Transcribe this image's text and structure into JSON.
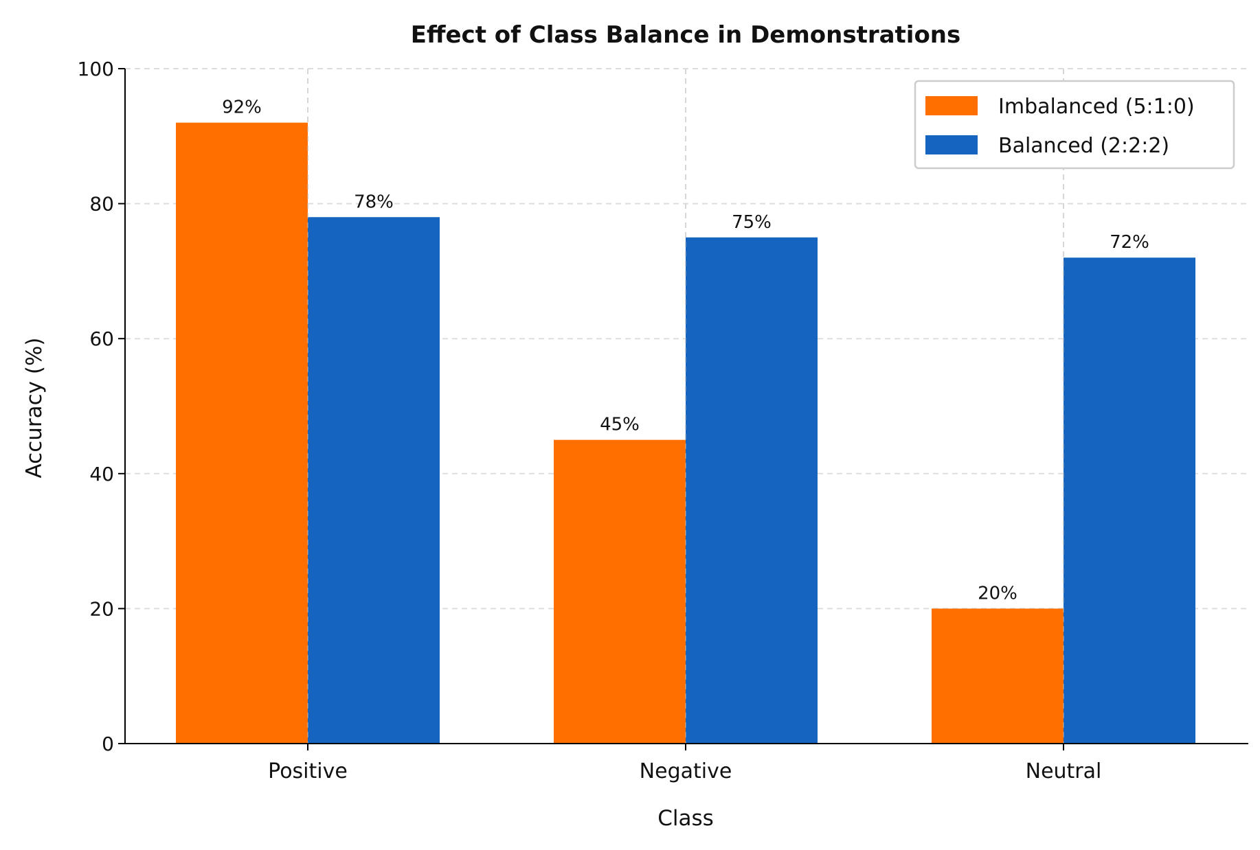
{
  "chart_data": {
    "type": "bar",
    "title": "Effect of Class Balance in Demonstrations",
    "xlabel": "Class",
    "ylabel": "Accuracy (%)",
    "categories": [
      "Positive",
      "Negative",
      "Neutral"
    ],
    "series": [
      {
        "name": "Imbalanced (5:1:0)",
        "values": [
          92,
          45,
          20
        ],
        "labels": [
          "92%",
          "45%",
          "20%"
        ],
        "color": "#ff6f00"
      },
      {
        "name": "Balanced (2:2:2)",
        "values": [
          78,
          75,
          72
        ],
        "labels": [
          "78%",
          "75%",
          "72%"
        ],
        "color": "#1565c0"
      }
    ],
    "ylim": [
      0,
      100
    ],
    "yticks": [
      "0",
      "20",
      "40",
      "60",
      "80",
      "100"
    ],
    "grid": true,
    "legend": "top-right"
  }
}
